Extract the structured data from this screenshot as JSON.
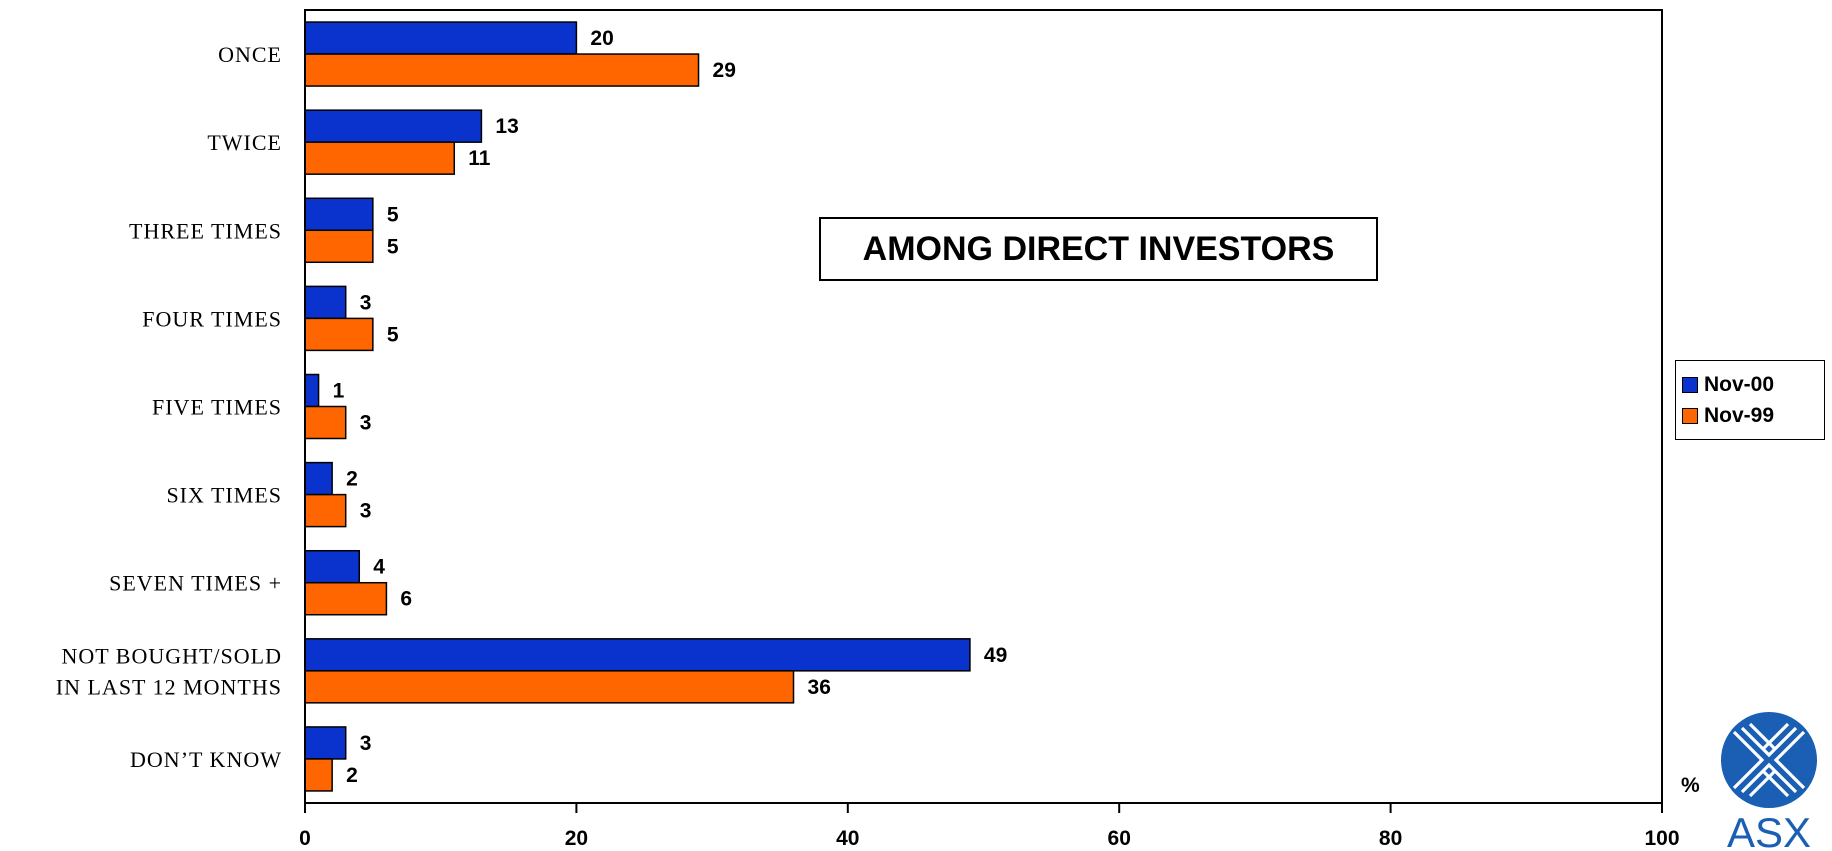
{
  "chart_data": {
    "type": "bar",
    "orientation": "horizontal",
    "title": "AMONG DIRECT INVESTORS",
    "categories": [
      "ONCE",
      "TWICE",
      "THREE TIMES",
      "FOUR TIMES",
      "FIVE TIMES",
      "SIX TIMES",
      "SEVEN TIMES +",
      "NOT BOUGHT/SOLD\nIN LAST 12 MONTHS",
      "DON’T KNOW"
    ],
    "series": [
      {
        "name": "Nov-00",
        "color": "#0a32cc",
        "values": [
          20,
          13,
          5,
          3,
          1,
          2,
          4,
          49,
          3
        ]
      },
      {
        "name": "Nov-99",
        "color": "#ff6600",
        "values": [
          29,
          11,
          5,
          5,
          3,
          3,
          6,
          36,
          2
        ]
      }
    ],
    "xlim": [
      0,
      100
    ],
    "xticks": [
      0,
      20,
      40,
      60,
      80,
      100
    ],
    "xlabel": "%",
    "grid": false,
    "legend_position": "right"
  },
  "logo": {
    "text": "ASX",
    "icon": "asx-logo-icon",
    "color": "#1a5fb4"
  }
}
